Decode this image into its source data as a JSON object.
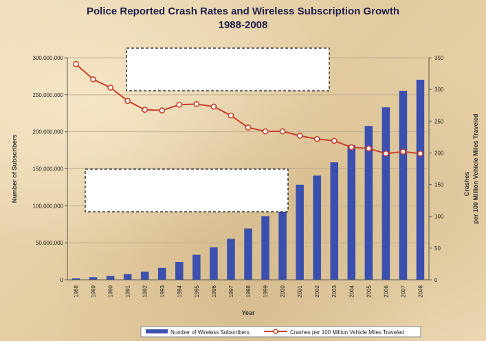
{
  "chart_data": {
    "type": "bar",
    "title": "Police Reported Crash Rates and Wireless Subscription Growth",
    "subtitle": "1988-2008",
    "xlabel": "Year",
    "ylabel_left": "Number of Subscribers",
    "ylabel_right_line1": "Crashes",
    "ylabel_right_line2": "per 100 Million Vehicle Miles Traveled",
    "categories": [
      "1988",
      "1989",
      "1990",
      "1991",
      "1992",
      "1993",
      "1994",
      "1995",
      "1996",
      "1997",
      "1998",
      "1999",
      "2000",
      "2001",
      "2002",
      "2003",
      "2004",
      "2005",
      "2006",
      "2007",
      "2008"
    ],
    "left_ylim": [
      0,
      300000000
    ],
    "left_ticks": [
      "0",
      "50,000,000",
      "100,000,000",
      "150,000,000",
      "200,000,000",
      "250,000,000",
      "300,000,000"
    ],
    "right_ylim": [
      0,
      350
    ],
    "right_ticks": [
      "0",
      "50",
      "100",
      "150",
      "200",
      "250",
      "300",
      "350"
    ],
    "grid": true,
    "legend_position": "bottom",
    "series": [
      {
        "name": "Number of Wireless Subscribers",
        "kind": "bar",
        "axis": "left",
        "color": "#3b4fae",
        "values": [
          2000000,
          3500000,
          5300000,
          7600000,
          11000000,
          16000000,
          24100000,
          33800000,
          44000000,
          55300000,
          69200000,
          86000000,
          109500000,
          128400000,
          140800000,
          158700000,
          182100000,
          207900000,
          233000000,
          255400000,
          270300000
        ]
      },
      {
        "name": "Crashes per 100 Million Vehicle Miles Traveled",
        "kind": "line",
        "axis": "right",
        "color": "#c8402a",
        "values": [
          340,
          316,
          303,
          282,
          268,
          267,
          276,
          277,
          273,
          259,
          240,
          234,
          234,
          227,
          222,
          219,
          209,
          207,
          199,
          202,
          199
        ]
      }
    ]
  },
  "colors": {
    "grid": "#bfae8c",
    "axis": "#555555",
    "marker_fill": "#ffffff"
  }
}
